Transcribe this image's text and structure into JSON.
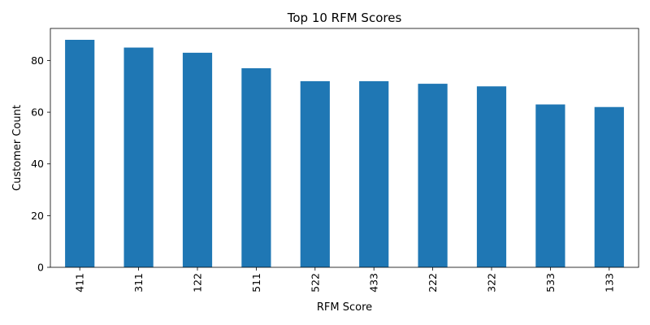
{
  "chart_data": {
    "type": "bar",
    "title": "Top 10 RFM Scores",
    "xlabel": "RFM Score",
    "ylabel": "Customer Count",
    "categories": [
      "411",
      "311",
      "122",
      "511",
      "522",
      "433",
      "222",
      "322",
      "533",
      "133"
    ],
    "values": [
      88,
      85,
      83,
      77,
      72,
      72,
      71,
      70,
      63,
      62
    ],
    "ylim": [
      0,
      92.4
    ],
    "yticks": [
      "0",
      "20",
      "40",
      "60",
      "80"
    ],
    "bar_color": "#1f77b4",
    "grid": false,
    "legend": "none"
  }
}
